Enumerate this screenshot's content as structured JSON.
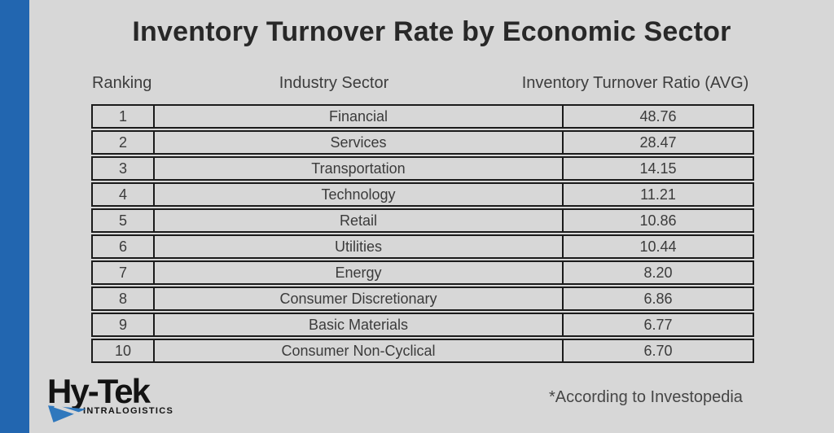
{
  "page": {
    "background_color": "#d7d7d7",
    "accent_bar_color": "#2266b0",
    "border_color": "#1b1b1b"
  },
  "title": "Inventory Turnover Rate by Economic Sector",
  "table": {
    "headers": [
      "Ranking",
      "Industry Sector",
      "Inventory Turnover Ratio (AVG)"
    ],
    "rows": [
      {
        "ranking": "1",
        "sector": "Financial",
        "ratio": "48.76"
      },
      {
        "ranking": "2",
        "sector": "Services",
        "ratio": "28.47"
      },
      {
        "ranking": "3",
        "sector": "Transportation",
        "ratio": "14.15"
      },
      {
        "ranking": "4",
        "sector": "Technology",
        "ratio": "11.21"
      },
      {
        "ranking": "5",
        "sector": "Retail",
        "ratio": "10.86"
      },
      {
        "ranking": "6",
        "sector": "Utilities",
        "ratio": "10.44"
      },
      {
        "ranking": "7",
        "sector": "Energy",
        "ratio": "8.20"
      },
      {
        "ranking": "8",
        "sector": "Consumer Discretionary",
        "ratio": "6.86"
      },
      {
        "ranking": "9",
        "sector": "Basic Materials",
        "ratio": "6.77"
      },
      {
        "ranking": "10",
        "sector": "Consumer Non-Cyclical",
        "ratio": "6.70"
      }
    ]
  },
  "logo": {
    "name": "Hy-Tek",
    "subtitle": "INTRALOGISTICS",
    "arrow_color": "#2f78bd"
  },
  "footnote": "*According to Investopedia",
  "chart_data": {
    "type": "table",
    "title": "Inventory Turnover Rate by Economic Sector",
    "columns": [
      "Ranking",
      "Industry Sector",
      "Inventory Turnover Ratio (AVG)"
    ],
    "categories": [
      "Financial",
      "Services",
      "Transportation",
      "Technology",
      "Retail",
      "Utilities",
      "Energy",
      "Consumer Discretionary",
      "Basic Materials",
      "Consumer Non-Cyclical"
    ],
    "rankings": [
      1,
      2,
      3,
      4,
      5,
      6,
      7,
      8,
      9,
      10
    ],
    "values": [
      48.76,
      28.47,
      14.15,
      11.21,
      10.86,
      10.44,
      8.2,
      6.86,
      6.77,
      6.7
    ],
    "annotations": [
      "*According to Investopedia"
    ]
  }
}
